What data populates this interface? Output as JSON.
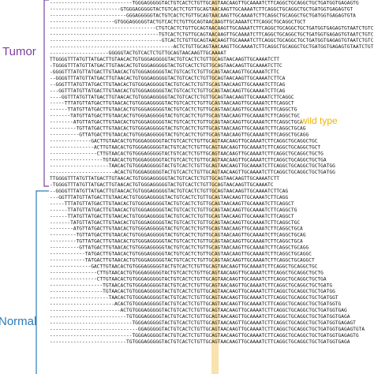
{
  "colors": {
    "tumor": "#7b3f9e",
    "normal": "#2a7ab8",
    "wild_type": "#f0b400",
    "highlight": "#f6d58a",
    "text": "#111111"
  },
  "labels": {
    "tumor": "Tumor",
    "normal": "Normal",
    "wild_type": "wild type"
  },
  "reads": [
    {
      "pad": 28,
      "text": "TGGGAGGGGGTACTGTCACTCTGTTGCAGTAACAAGTTGCAAAATCTTCAGGCTGCAGGCTGCTGATGGTGAGAGTG"
    },
    {
      "pad": 24,
      "text": "GTGGGAGGGGGTACTGTCACTCTGTTGCAGTAACAAGTTGCAAAATCTTCAGGCTGCAGGCTGCTGATGGTGAGAGTGT"
    },
    {
      "pad": 26,
      "text": "GGGAGGGGGTACTGTCACTCTGTTGCAGTAACAAGTTGCAAAATCTTCAGGCTGCAGGCTGCTGATGGTGAGAGTGTA"
    },
    {
      "pad": 22,
      "text": "GTGGGAGGGGGTACTGTCACTCTGTTGCAGTAACAAGTTGCAAAATCTTCAGGCTGCAGGCTGCT"
    },
    {
      "pad": 36,
      "text": "CTGTCACTCTGTTGCAGTAACAAGTTGCAAAATCTTCAGGCTGCAGGCTGCTGATGGTGAGAGTGTAATCTGTCCCA"
    },
    {
      "pad": 37,
      "text": "TGTCACTCTGTTGCAGTAACAAGTTGCAAAATCTTCAGGCTGCAGGCTGCTGATGGTGAGAGTGTAATCTGTCCCA"
    },
    {
      "pad": 38,
      "text": "GTCACTCTGTTGCAGTAACAAGTTGCAAAATCTTCAGGCTGCAGGCTGCTGATGGTGAGAGTGTAATCTGTCCCA"
    },
    {
      "pad": 42,
      "text": "ACTCTGTTGCAGTAACAAGTTGCAAAATCTTCAGGCTGCAGGCTGCTGATGGTGAGAGTGTAATCTGTCCCA"
    },
    {
      "pad": 20,
      "text": "GGGGGTACTGTCACTCTGTTGCAGTAACAAGTTGCAAAAT"
    },
    {
      "pad": 0,
      "text": "TTGGGGTTTATGTTATGACTTGTAACACTGTGGGAGGGGGTACTGTCACTCTGTTGCAGTAACAAGTTGCAAAATCTT"
    },
    {
      "pad": 1,
      "text": "TGGGGTTTATGTTATGACTTGTAACACTGTGGGAGGGGGTACTGTCACTCTGTTGCAGTAACAAGTTGCAAAATCTTC"
    },
    {
      "pad": 1,
      "text": "GGGGTTTATGTTATGACTTGTAACACTGTGGGAGGGGGTACTGTCACTCTGTTGCAGTAACAAGTTGCAAAATCTTC"
    },
    {
      "pad": 2,
      "text": "GGGGTTTATGTTATGACTTGTAACACTGTGGGAGGGGGTACTGTCACTCTGTTGCAGTAACAAGTTGCAAAATCTTCA"
    },
    {
      "pad": 2,
      "text": "GGGTTTATGTTATGACTTGTAACACTGTGGGAGGGGGTACTGTCACTCTGTTGCAGTAACAAGTTGCAAAATCTTCAG"
    },
    {
      "pad": 3,
      "text": "GGTTTATGTTATGACTTGTAACACTGTGGGAGGGGGTACTGTCACTCTGTTGCAGTAACAAGTTGCAAAATCTTCAG"
    },
    {
      "pad": 4,
      "text": "GGTTTATGTTATGACTTGTAACACTGTGGGAGGGGGTACTGTCACTCTGTTGCAGTAACAAGTTGCAAAATCTTCAGGC"
    },
    {
      "pad": 5,
      "text": "TTTATGTTATGACTTGTAACACTGTGGGAGGGGGTACTGTCACTCTGTTGCAGTAACAAGTTGCAAAATCTTCAGGCT"
    },
    {
      "pad": 6,
      "text": "TTATGTTATGACTTGTAACACTGTGGGAGGGGGTACTGTCACTCTGTTGCAGTAACAAGTTGCAAAATCTTCAGGCTG"
    },
    {
      "pad": 7,
      "text": "TATGTTATGACTTGTAACACTGTGGGAGGGGGTACTGTCACTCTGTTGCAGTAACAAGTTGCAAAATCTTCAGGCTGC"
    },
    {
      "pad": 8,
      "text": "ATGTTATGACTTGTAACACTGTGGGAGGGGGTACTGTCACTCTGTTGCAGTAACAAGTTGCAAAATCTTCAGGCTGCA"
    },
    {
      "pad": 9,
      "text": "TGTTATGACTTGTAACACTGTGGGAGGGGGTACTGTCACTCTGTTGCAGTAACAAGTTGCAAAATCTTCAGGCTGCAG"
    },
    {
      "pad": 10,
      "text": "GTTATGACTTGTAACACTGTGGGAGGGGGTACTGTCACTCTGTTGCAGTAACAAGTTGCAAAATCTTCAGGCTGCAGG"
    },
    {
      "pad": 14,
      "text": "GACTTGTAACACTGTGGGAGGGGGTACTGTCACTCTGTTGCAGTAACAAGTTGCAAAATCTTCAGGCTGCAGGCTGC"
    },
    {
      "pad": 15,
      "text": "ACTTGTAACACTGTGGGAGGGGGTACTGTCACTCTGTTGCAGTAACAAGTTGCAAAATCTTCAGGCTGCAGGCTGCT"
    },
    {
      "pad": 16,
      "text": "CTTGTAACACTGTGGGAGGGGGTACTGTCACTCTGTTGCAGTAACAAGTTGCAAAATCTTCAGGCTGCAGGCTGCTG"
    },
    {
      "pad": 18,
      "text": "TGTAACACTGTGGGAGGGGGTACTGTCACTCTGTTGCAGTAACAAGTTGCAAAATCTTCAGGCTGCAGGCTGCTGA"
    },
    {
      "pad": 20,
      "text": "TAACACTGTGGGAGGGGGTACTGTCACTCTGTTGCAGTAACAAGTTGCAAAATCTTCAGGCTGCAGGCTGCTGATGG"
    },
    {
      "pad": 22,
      "text": "ACACTGTGGGAGGGGGTACTGTCACTCTGTTGCAGTAACAAGTTGCAAAATCTTCAGGCTGCAGGCTGCTGATGG"
    },
    {
      "pad": 0,
      "text": "TTGGGGTTTATGTTATGACTTGTAACACTGTGGGAGGGGGTACTGTCACTCTGTTGCAGTAACAAGTTGCAAAATCTT"
    },
    {
      "pad": 1,
      "text": "TGGGGTTTATGTTATGACTTGTAACACTGTGGGAGGGGGTACTGTCACTCTGTTGCAGTAACAAGTTGCAAAATC"
    },
    {
      "pad": 2,
      "text": "GGGGTTTATGTTATGACTTGTAACACTGTGGGAGGGGGTACTGTCACTCTGTTGCAGTAACAAGTTGCAAAATCTTCAG"
    },
    {
      "pad": 3,
      "text": "GGTTTATGTTATGACTTGTAACACTGTGGGAGGGGGTACTGTCACTCTGTTGCAGTAACAAGTTGCAAAATCTTCAGG"
    },
    {
      "pad": 5,
      "text": "TTTATGTTATGACTTGTAACACTGTGGGAGGGGGTACTGTCACTCTGTTGCAGTAACAAGTTGCAAAATCTTCAGGCT"
    },
    {
      "pad": 6,
      "text": "TTATGTTATGACTTGTAACACTGTGGGAGGGGGTACTGTCACTCTGTTGCAGTAACAAGTTGCAAAATCTTCAGGCTG"
    },
    {
      "pad": 6,
      "text": "TTATGTTATGACTTGTAACACTGTGGGAGGGGGTACTGTCACTCTGTTGCAGTAACAAGTTGCAAAATCTTCAGGCT"
    },
    {
      "pad": 7,
      "text": "TATGTTATGACTTGTAACACTGTGGGAGGGGGTACTGTCACTCTGTTGCAGTAACAAGTTGCAAAATCTTCAGGCTGC"
    },
    {
      "pad": 8,
      "text": "ATGTTATGACTTGTAACACTGTGGGAGGGGGTACTGTCACTCTGTTGCAGTAACAAGTTGCAAAATCTTCAGGCTGCA"
    },
    {
      "pad": 9,
      "text": "TGTTATGACTTGTAACACTGTGGGAGGGGGTACTGTCACTCTGTTGCAGTAACAAGTTGCAAAATCTTCAGGCTGCAG"
    },
    {
      "pad": 9,
      "text": "TGTTATGACTTGTAACACTGTGGGAGGGGGTACTGTCACTCTGTTGCAGTAACAAGTTGCAAAATCTTCAGGCTGCA"
    },
    {
      "pad": 10,
      "text": "GTTATGACTTGTAACACTGTGGGAGGGGGTACTGTCACTCTGTTGCAGTAACAAGTTGCAAAATCTTCAGGCTGCAGG"
    },
    {
      "pad": 12,
      "text": "TATGACTTGTAACACTGTGGGAGGGGGTACTGTCACTCTGTTGCAGTAACAAGTTGCAAAATCTTCAGGCTGCAGGC"
    },
    {
      "pad": 12,
      "text": "TATGACTTGTAACACTGTGGGAGGGGGTACTGTCACTCTGTTGCAGTAACAAGTTGCAAAATCTTCAGGCTGCAGGCT"
    },
    {
      "pad": 14,
      "text": "GACTTGTAACACTGTGGGAGGGGGTACTGTCACTCTGTTGCAGTAACAAGTTGCAAAATCTTCAGGCTGCAGGCTGC"
    },
    {
      "pad": 16,
      "text": "CTTGTAACACTGTGGGAGGGGGTACTGTCACTCTGTTGCAGTAACAAGTTGCAAAATCTTCAGGCTGCAGGCTGCTG"
    },
    {
      "pad": 16,
      "text": "CTTGTAACACTGTGGGAGGGGGTACTGTCACTCTGTTGCAGTAACAAGTTGCAAAATCTTCAGGCTGCAGGCTGCTGA"
    },
    {
      "pad": 18,
      "text": "TGTAACACTGTGGGAGGGGGTACTGTCACTCTGTTGCAGTAACAAGTTGCAAAATCTTCAGGCTGCAGGCTGCTGATG"
    },
    {
      "pad": 18,
      "text": "TGTAACACTGTGGGAGGGGGTACTGTCACTCTGTTGCAGTAACAAGTTGCAAAATCTTCAGGCTGCAGGCTGCTGATGG"
    },
    {
      "pad": 20,
      "text": "TAACACTGTGGGAGGGGGTACTGTCACTCTGTTGCAGTAACAAGTTGCAAAATCTTCAGGCTGCAGGCTGCTGATGGT"
    },
    {
      "pad": 22,
      "text": "ACACTGTGGGAGGGGGTACTGTCACTCTGTTGCAGTAACAAGTTGCAAAATCTTCAGGCTGCAGGCTGCTGATGGTG"
    },
    {
      "pad": 24,
      "text": "ACTGTGGGAGGGGGTACTGTCACTCTGTTGCAGTAACAAGTTGCAAAATCTTCAGGCTGCAGGCTGCTGATGGTGAG"
    },
    {
      "pad": 26,
      "text": "TGTGGGAGGGGGTACTGTCACTCTGTTGCAGTAACAAGTTGCAAAATCTTCAGGCTGCAGGCTGCTGATGGTGAGA"
    },
    {
      "pad": 28,
      "text": "TGGGAGGGGGTACTGTCACTCTGTTGCAGTAACAAGTTGCAAAATCTTCAGGCTGCAGGCTGCTGATGGTGAGAGT"
    },
    {
      "pad": 30,
      "text": "GGAGGGGGTACTGTCACTCTGTTGCAGTAACAAGTTGCAAAATCTTCAGGCTGCAGGCTGCTGATGGTGAGAGTGTA"
    },
    {
      "pad": 28,
      "text": "TGGGAGGGGGTACTGTCACTCTGTTGCAGTAACAAGTTGCAAAATCTTCAGGCTGCAGGCTGCTGATGGTGAGAGTG"
    },
    {
      "pad": 26,
      "text": "TGTGGGAGGGGGTACTGTCACTCTGTTGCAGTAACAAGTTGCAAAATCTTCAGGCTGCAGGCTGCTGATGGTGAGA"
    }
  ]
}
